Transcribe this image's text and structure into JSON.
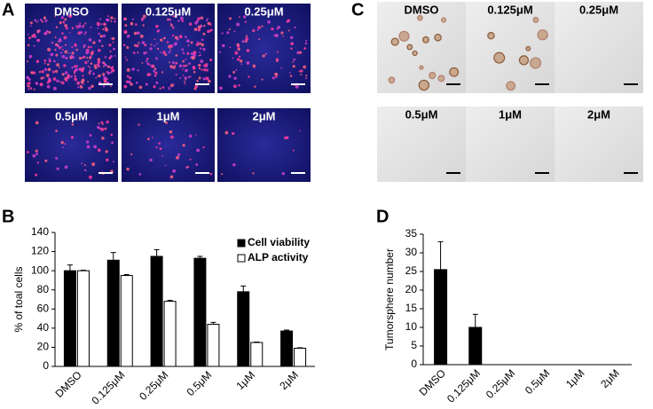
{
  "panels": [
    {
      "letter": "A",
      "labels": [
        "DMSO",
        "0.125μM",
        "0.25μM",
        "0.5μM",
        "1μM",
        "2μM"
      ]
    },
    {
      "letter": "C",
      "labels": [
        "DMSO",
        "0.125μM",
        "0.25μM",
        "0.5μM",
        "1μM",
        "2μM"
      ]
    }
  ],
  "chart_letters": [
    "B",
    "D"
  ],
  "chart_data": [
    {
      "type": "bar",
      "y_label": "% of toal cells",
      "categories": [
        "DMSO",
        "0.125μM",
        "0.25μM",
        "0.5μM",
        "1μM",
        "2μM"
      ],
      "series": [
        {
          "name": "Cell viability",
          "color": "#000000",
          "values": [
            100,
            111,
            115,
            113,
            78,
            37
          ],
          "errors": [
            6,
            8,
            7,
            2,
            6,
            1
          ]
        },
        {
          "name": "ALP activity",
          "color": "#ffffff",
          "values": [
            100,
            95,
            68,
            44,
            25,
            19
          ],
          "errors": [
            0.5,
            1,
            1,
            2,
            0.5,
            0.5
          ]
        }
      ],
      "ylim": [
        0,
        140
      ],
      "yticks": [
        0,
        20,
        40,
        60,
        80,
        100,
        120,
        140
      ],
      "legend": "top-right"
    },
    {
      "type": "bar",
      "y_label": "Tumorsphere number",
      "categories": [
        "DMSO",
        "0.125μM",
        "0.25μM",
        "0.5μM",
        "1μM",
        "2μM"
      ],
      "color": "#000000",
      "values": [
        25.5,
        10,
        0,
        0,
        0,
        0
      ],
      "errors": [
        7.5,
        3.5,
        0,
        0,
        0,
        0
      ],
      "ylim": [
        0,
        35
      ],
      "yticks": [
        0,
        5,
        10,
        15,
        20,
        25,
        30,
        35
      ]
    }
  ]
}
